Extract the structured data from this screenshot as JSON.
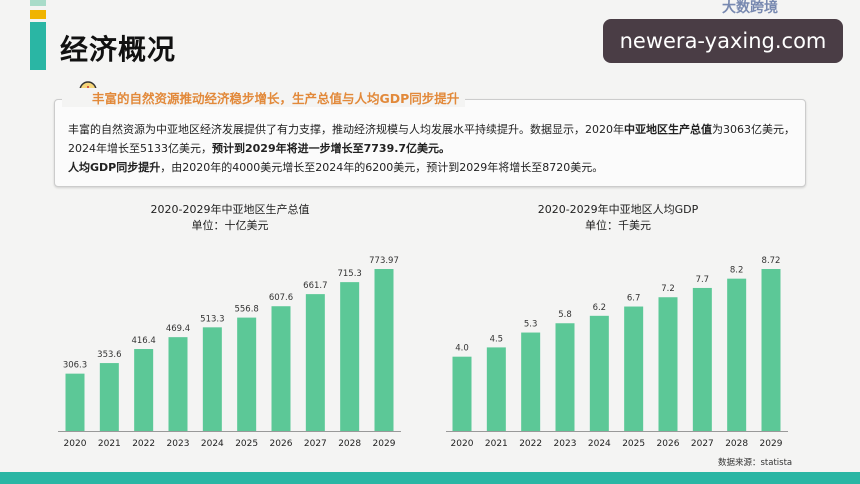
{
  "header": {
    "title": "经济概况",
    "watermark": "newera-yaxing.com",
    "watermark_logo": "大数跨境"
  },
  "colors": {
    "accent": "#2ab6a4",
    "bar": "#5cc897",
    "highlight": "#e2893a",
    "deco_top": "#a9dcc9",
    "deco_mid": "#f0b400"
  },
  "summary": {
    "heading": "丰富的自然资源推动经济稳步增长，生产总值与人均GDP同步提升",
    "line1_a": "丰富的自然资源为中亚地区经济发展提供了有力支撑，推动经济规模与人均发展水平持续提升。数据显示，2020年",
    "line1_b": "中亚地区生产总值",
    "line1_c": "为3063亿美元，",
    "line2_a": "2024年增长至5133亿美元，",
    "line2_b": "预计到2029年将进一步增长至7739.7亿美元。",
    "line3_a": "人均GDP同步提升",
    "line3_b": "，由2020年的4000美元增长至2024年的6200美元，预计到2029年将增长至8720美元。"
  },
  "chart_data": [
    {
      "type": "bar",
      "title": "2020-2029年中亚地区生产总值",
      "subtitle": "单位：十亿美元",
      "categories": [
        "2020",
        "2021",
        "2022",
        "2023",
        "2024",
        "2025",
        "2026",
        "2027",
        "2028",
        "2029"
      ],
      "values": [
        306.3,
        353.6,
        416.4,
        469.4,
        513.3,
        556.8,
        607.6,
        661.7,
        715.3,
        773.97
      ],
      "labels": [
        "306.3",
        "353.6",
        "416.4",
        "469.4",
        "513.3",
        "556.8",
        "607.6",
        "661.7",
        "715.3",
        "773.97"
      ],
      "ylim": [
        50,
        800
      ],
      "grid": false
    },
    {
      "type": "bar",
      "title": "2020-2029年中亚地区人均GDP",
      "subtitle": "单位：千美元",
      "categories": [
        "2020",
        "2021",
        "2022",
        "2023",
        "2024",
        "2025",
        "2026",
        "2027",
        "2028",
        "2029"
      ],
      "values": [
        4.0,
        4.5,
        5.3,
        5.8,
        6.2,
        6.7,
        7.2,
        7.7,
        8.2,
        8.72
      ],
      "labels": [
        "4.0",
        "4.5",
        "5.3",
        "5.8",
        "6.2",
        "6.7",
        "7.2",
        "7.7",
        "8.2",
        "8.72"
      ],
      "ylim": [
        0,
        9
      ],
      "grid": false
    }
  ],
  "source": "数据来源：statista"
}
